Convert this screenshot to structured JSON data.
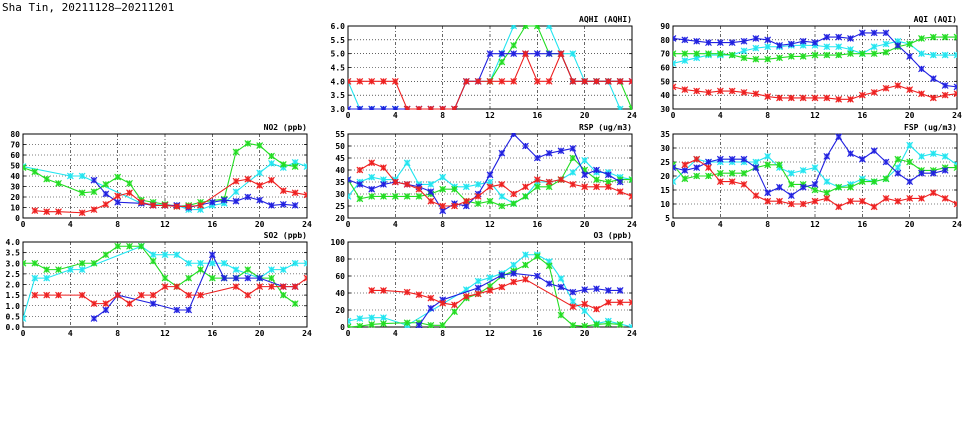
{
  "title": "Sha Tin, 20211128–20211201",
  "series_colors": {
    "cyan": "#22e5f0",
    "green": "#22dd22",
    "blue": "#2020e0",
    "red": "#ee2020"
  },
  "chart_data": [
    {
      "id": "aqhi",
      "type": "line",
      "title": "AQHI (AQHI)",
      "ylim": [
        3,
        6
      ],
      "yticks": [
        "3.0",
        "3.5",
        "4.0",
        "4.5",
        "5.0",
        "5.5",
        "6.0"
      ],
      "xlim": [
        0,
        24
      ],
      "xticks": [
        "0",
        "4",
        "8",
        "12",
        "16",
        "20",
        "24"
      ],
      "grid": true,
      "series": [
        {
          "name": "cyan",
          "values": [
            4,
            3,
            3,
            3,
            3,
            3,
            3,
            3,
            3,
            3,
            4,
            4,
            4,
            5,
            6,
            6.5,
            6.5,
            6,
            5,
            5,
            4,
            4,
            4,
            3,
            null
          ]
        },
        {
          "name": "green",
          "values": [
            null,
            null,
            null,
            null,
            null,
            null,
            null,
            null,
            null,
            null,
            null,
            null,
            4,
            4.7,
            5.3,
            6,
            6,
            5,
            5,
            4,
            4,
            4,
            4,
            4,
            3
          ]
        },
        {
          "name": "blue",
          "values": [
            3,
            3,
            3,
            3,
            3,
            3,
            3,
            3,
            3,
            3,
            4,
            4,
            5,
            5,
            5,
            5,
            5,
            5,
            5,
            4,
            4,
            4,
            4,
            4,
            4
          ]
        },
        {
          "name": "red",
          "values": [
            4,
            4,
            4,
            4,
            4,
            3,
            3,
            3,
            3,
            3,
            4,
            4,
            4,
            4,
            4,
            5,
            4,
            4,
            5,
            4,
            4,
            4,
            4,
            4,
            4
          ]
        }
      ]
    },
    {
      "id": "aqi",
      "type": "line",
      "title": "AQI (AQI)",
      "ylim": [
        30,
        90
      ],
      "yticks": [
        "30",
        "40",
        "50",
        "60",
        "70",
        "80",
        "90"
      ],
      "xlim": [
        0,
        24
      ],
      "xticks": [
        "0",
        "4",
        "8",
        "12",
        "16",
        "20",
        "24"
      ],
      "grid": true,
      "series": [
        {
          "name": "cyan",
          "values": [
            63,
            65,
            67,
            69,
            69,
            69,
            72,
            74,
            75,
            75,
            76,
            76,
            76,
            75,
            75,
            73,
            70,
            75,
            77,
            79,
            77,
            70,
            69,
            69,
            69
          ]
        },
        {
          "name": "green",
          "values": [
            70,
            70,
            70,
            70,
            70,
            69,
            67,
            66,
            66,
            67,
            68,
            68,
            69,
            69,
            69,
            70,
            70,
            70,
            71,
            75,
            77,
            81,
            82,
            82,
            82
          ]
        },
        {
          "name": "blue",
          "values": [
            81,
            80,
            79,
            78,
            78,
            78,
            79,
            81,
            80,
            76,
            77,
            79,
            78,
            82,
            82,
            81,
            85,
            85,
            85,
            76,
            68,
            59,
            52,
            47,
            46
          ]
        },
        {
          "name": "red",
          "values": [
            46,
            44,
            43,
            42,
            43,
            43,
            42,
            41,
            39,
            38,
            38,
            38,
            38,
            38,
            37,
            37,
            40,
            42,
            45,
            47,
            44,
            41,
            38,
            40,
            41
          ]
        }
      ]
    },
    {
      "id": "no2",
      "type": "line",
      "title": "NO2 (ppb)",
      "ylim": [
        0,
        80
      ],
      "yticks": [
        "0",
        "10",
        "20",
        "30",
        "40",
        "50",
        "60",
        "70",
        "80"
      ],
      "xlim": [
        0,
        24
      ],
      "xticks": [
        "0",
        "4",
        "8",
        "12",
        "16",
        "20",
        "24"
      ],
      "grid": true,
      "series": [
        {
          "name": "cyan",
          "values": [
            49,
            null,
            null,
            null,
            40,
            40,
            null,
            null,
            null,
            null,
            14,
            13,
            12,
            12,
            8,
            8,
            12,
            14,
            25,
            null,
            43,
            52,
            48,
            53,
            49
          ]
        },
        {
          "name": "green",
          "values": [
            48,
            44,
            37,
            33,
            null,
            24,
            25,
            32,
            39,
            33,
            17,
            15,
            13,
            11,
            12,
            15,
            null,
            18,
            63,
            71,
            69,
            59,
            51,
            49,
            null
          ]
        },
        {
          "name": "blue",
          "values": [
            null,
            null,
            null,
            null,
            null,
            null,
            36,
            23,
            15,
            null,
            14,
            12,
            12,
            12,
            10,
            null,
            15,
            17,
            16,
            20,
            17,
            12,
            13,
            12,
            null
          ]
        },
        {
          "name": "red",
          "values": [
            null,
            7,
            6,
            6,
            null,
            5,
            8,
            13,
            21,
            24,
            15,
            12,
            12,
            11,
            11,
            12,
            null,
            null,
            35,
            37,
            31,
            36,
            26,
            24,
            22
          ]
        }
      ]
    },
    {
      "id": "rsp",
      "type": "line",
      "title": "RSP (ug/m3)",
      "ylim": [
        20,
        55
      ],
      "yticks": [
        "20",
        "25",
        "30",
        "35",
        "40",
        "45",
        "50",
        "55"
      ],
      "xlim": [
        0,
        24
      ],
      "xticks": [
        "0",
        "4",
        "8",
        "12",
        "16",
        "20",
        "24"
      ],
      "grid": true,
      "series": [
        {
          "name": "cyan",
          "values": [
            29,
            35,
            37,
            36,
            36,
            43,
            34,
            34,
            37,
            33,
            33,
            34,
            35,
            29,
            26,
            29,
            35,
            35,
            36,
            39,
            44,
            39,
            39,
            37,
            36
          ]
        },
        {
          "name": "green",
          "values": [
            36,
            28,
            29,
            29,
            29,
            29,
            29,
            30,
            32,
            32,
            27,
            26,
            27,
            25,
            26,
            29,
            33,
            33,
            36,
            45,
            40,
            36,
            35,
            36,
            36
          ]
        },
        {
          "name": "blue",
          "values": [
            36,
            34,
            32,
            34,
            35,
            34,
            33,
            31,
            23,
            26,
            25,
            30,
            38,
            47,
            55,
            50,
            45,
            47,
            48,
            49,
            38,
            40,
            38,
            35,
            null
          ]
        },
        {
          "name": "red",
          "values": [
            null,
            40,
            43,
            41,
            35,
            34,
            32,
            27,
            25,
            25,
            27,
            29,
            33,
            34,
            30,
            33,
            36,
            35,
            36,
            34,
            33,
            33,
            33,
            31,
            29
          ]
        }
      ]
    },
    {
      "id": "fsp",
      "type": "line",
      "title": "FSP (ug/m3)",
      "ylim": [
        5,
        35
      ],
      "yticks": [
        "5",
        "10",
        "15",
        "20",
        "25",
        "30",
        "35"
      ],
      "xlim": [
        0,
        24
      ],
      "xticks": [
        "0",
        "4",
        "8",
        "12",
        "16",
        "20",
        "24"
      ],
      "grid": true,
      "series": [
        {
          "name": "cyan",
          "values": [
            18,
            null,
            26,
            25,
            25,
            25,
            25,
            25,
            27,
            23,
            21,
            22,
            23,
            18,
            16,
            17,
            19,
            18,
            19,
            23,
            31,
            27,
            28,
            27,
            24
          ]
        },
        {
          "name": "green",
          "values": [
            24,
            19,
            20,
            20,
            21,
            21,
            21,
            23,
            24,
            24,
            17,
            17,
            15,
            14,
            16,
            16,
            18,
            18,
            19,
            26,
            25,
            22,
            22,
            23,
            23
          ]
        },
        {
          "name": "blue",
          "values": [
            23,
            22,
            23,
            25,
            26,
            26,
            26,
            23,
            14,
            16,
            13,
            16,
            17,
            27,
            34,
            28,
            26,
            29,
            25,
            21,
            18,
            21,
            21,
            22,
            null
          ]
        },
        {
          "name": "red",
          "values": [
            null,
            24,
            26,
            23,
            18,
            18,
            17,
            13,
            11,
            11,
            10,
            10,
            11,
            12,
            9,
            11,
            11,
            9,
            12,
            11,
            12,
            12,
            14,
            12,
            10
          ]
        }
      ]
    },
    {
      "id": "so2",
      "type": "line",
      "title": "SO2 (ppb)",
      "ylim": [
        0,
        4
      ],
      "yticks": [
        "0.0",
        "0.5",
        "1.0",
        "1.5",
        "2.0",
        "2.5",
        "3.0",
        "3.5",
        "4.0"
      ],
      "xlim": [
        0,
        24
      ],
      "xticks": [
        "0",
        "4",
        "8",
        "12",
        "16",
        "20",
        "24"
      ],
      "grid": true,
      "series": [
        {
          "name": "cyan",
          "values": [
            0.4,
            2.3,
            2.3,
            null,
            2.7,
            2.7,
            null,
            null,
            null,
            null,
            3.8,
            3.4,
            3.4,
            3.4,
            3.0,
            3.0,
            3.0,
            3.0,
            2.7,
            null,
            2.3,
            2.7,
            2.7,
            3.0,
            3.0
          ]
        },
        {
          "name": "green",
          "values": [
            3.0,
            3.0,
            2.7,
            2.7,
            null,
            3.0,
            3.0,
            3.4,
            3.8,
            3.8,
            3.8,
            3.1,
            2.3,
            1.9,
            2.3,
            2.7,
            2.3,
            2.3,
            2.3,
            2.7,
            2.3,
            2.3,
            1.5,
            1.1,
            null
          ]
        },
        {
          "name": "blue",
          "values": [
            null,
            null,
            null,
            null,
            null,
            null,
            0.4,
            0.8,
            1.5,
            null,
            null,
            1.1,
            null,
            0.8,
            0.8,
            null,
            3.4,
            2.3,
            2.3,
            2.3,
            2.3,
            null,
            1.9,
            1.9,
            null
          ]
        },
        {
          "name": "red",
          "values": [
            null,
            1.5,
            1.5,
            1.5,
            null,
            1.5,
            1.1,
            1.1,
            1.5,
            1.1,
            1.5,
            1.5,
            1.9,
            1.9,
            1.5,
            1.5,
            null,
            null,
            1.9,
            1.5,
            1.9,
            1.9,
            1.9,
            1.9,
            2.3
          ]
        }
      ]
    },
    {
      "id": "o3",
      "type": "line",
      "title": "O3 (ppb)",
      "ylim": [
        0,
        100
      ],
      "yticks": [
        "0",
        "20",
        "40",
        "60",
        "80",
        "100"
      ],
      "xlim": [
        0,
        24
      ],
      "xticks": [
        "0",
        "4",
        "8",
        "12",
        "16",
        "20",
        "24"
      ],
      "grid": true,
      "series": [
        {
          "name": "cyan",
          "values": [
            7,
            10,
            11,
            11,
            null,
            2,
            null,
            null,
            null,
            null,
            44,
            54,
            58,
            63,
            73,
            85,
            85,
            77,
            57,
            30,
            19,
            4,
            7,
            null,
            0
          ]
        },
        {
          "name": "green",
          "values": [
            0,
            1,
            3,
            4,
            null,
            5,
            5,
            2,
            2,
            18,
            34,
            39,
            48,
            60,
            66,
            73,
            83,
            72,
            14,
            2,
            1,
            3,
            4,
            3,
            null
          ]
        },
        {
          "name": "blue",
          "values": [
            null,
            null,
            null,
            null,
            null,
            null,
            2,
            22,
            32,
            null,
            null,
            46,
            null,
            61,
            63,
            null,
            60,
            51,
            47,
            41,
            44,
            45,
            43,
            43,
            null
          ]
        },
        {
          "name": "red",
          "values": [
            null,
            null,
            43,
            43,
            null,
            41,
            38,
            34,
            28,
            26,
            36,
            39,
            43,
            47,
            53,
            56,
            null,
            null,
            null,
            24,
            27,
            21,
            29,
            29,
            29
          ]
        }
      ]
    }
  ]
}
